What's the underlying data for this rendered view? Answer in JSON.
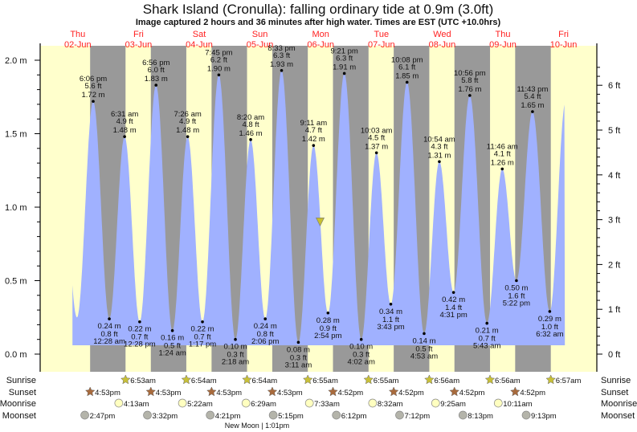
{
  "chart_data": {
    "type": "area",
    "title": "Shark Island (Cronulla): falling  ordinary tide at 0.9m (3.0ft)",
    "subtitle": "Image captured 2 hours and 36 minutes after high water. Times are EST (UTC +10.0hrs)",
    "y_left": {
      "unit": "m",
      "range": [
        0,
        2.0
      ],
      "ticks": [
        "0.0 m",
        "0.5 m",
        "1.0 m",
        "1.5 m",
        "2.0 m"
      ],
      "tick_values": [
        0,
        0.5,
        1.0,
        1.5,
        2.0
      ]
    },
    "y_right": {
      "unit": "ft",
      "ticks": [
        "0 ft",
        "1 ft",
        "2 ft",
        "3 ft",
        "4 ft",
        "5 ft",
        "6 ft"
      ],
      "tick_values": [
        0,
        1,
        2,
        3,
        4,
        5,
        6
      ]
    },
    "days": [
      {
        "dow": "Thu",
        "date": "02-Jun"
      },
      {
        "dow": "Fri",
        "date": "03-Jun"
      },
      {
        "dow": "Sat",
        "date": "04-Jun"
      },
      {
        "dow": "Sun",
        "date": "05-Jun"
      },
      {
        "dow": "Mon",
        "date": "06-Jun"
      },
      {
        "dow": "Tue",
        "date": "07-Jun"
      },
      {
        "dow": "Wed",
        "date": "08-Jun"
      },
      {
        "dow": "Thu",
        "date": "09-Jun"
      },
      {
        "dow": "Fri",
        "date": "10-Jun"
      }
    ],
    "current_level": {
      "m": 0.9,
      "ft": 3.0,
      "day": "06-Jun",
      "time": "11:47 am",
      "state": "falling"
    },
    "extremes": [
      {
        "type": "high",
        "day": "02-Jun",
        "time": "6:06 pm",
        "m": "1.72 m",
        "ft": "5.6 ft",
        "value": 1.72
      },
      {
        "type": "low",
        "day": "03-Jun",
        "time": "12:28 am",
        "m": "0.24 m",
        "ft": "0.8 ft",
        "value": 0.24
      },
      {
        "type": "high",
        "day": "03-Jun",
        "time": "6:31 am",
        "m": "1.48 m",
        "ft": "4.9 ft",
        "value": 1.48
      },
      {
        "type": "low",
        "day": "03-Jun",
        "time": "12:28 pm",
        "m": "0.22 m",
        "ft": "0.7 ft",
        "value": 0.22
      },
      {
        "type": "high",
        "day": "03-Jun",
        "time": "6:56 pm",
        "m": "1.83 m",
        "ft": "6.0 ft",
        "value": 1.83
      },
      {
        "type": "low",
        "day": "04-Jun",
        "time": "1:24 am",
        "m": "0.16 m",
        "ft": "0.5 ft",
        "value": 0.16
      },
      {
        "type": "high",
        "day": "04-Jun",
        "time": "7:26 am",
        "m": "1.48 m",
        "ft": "4.9 ft",
        "value": 1.48
      },
      {
        "type": "low",
        "day": "04-Jun",
        "time": "1:17 pm",
        "m": "0.22 m",
        "ft": "0.7 ft",
        "value": 0.22
      },
      {
        "type": "high",
        "day": "04-Jun",
        "time": "7:45 pm",
        "m": "1.90 m",
        "ft": "6.2 ft",
        "value": 1.9
      },
      {
        "type": "low",
        "day": "05-Jun",
        "time": "2:18 am",
        "m": "0.10 m",
        "ft": "0.3 ft",
        "value": 0.1
      },
      {
        "type": "high",
        "day": "05-Jun",
        "time": "8:20 am",
        "m": "1.46 m",
        "ft": "4.8 ft",
        "value": 1.46
      },
      {
        "type": "low",
        "day": "05-Jun",
        "time": "2:06 pm",
        "m": "0.24 m",
        "ft": "0.8 ft",
        "value": 0.24
      },
      {
        "type": "high",
        "day": "05-Jun",
        "time": "8:33 pm",
        "m": "1.93 m",
        "ft": "6.3 ft",
        "value": 1.93
      },
      {
        "type": "low",
        "day": "06-Jun",
        "time": "3:11 am",
        "m": "0.08 m",
        "ft": "0.3 ft",
        "value": 0.08
      },
      {
        "type": "high",
        "day": "06-Jun",
        "time": "9:11 am",
        "m": "1.42 m",
        "ft": "4.7 ft",
        "value": 1.42
      },
      {
        "type": "low",
        "day": "06-Jun",
        "time": "2:54 pm",
        "m": "0.28 m",
        "ft": "0.9 ft",
        "value": 0.28
      },
      {
        "type": "high",
        "day": "06-Jun",
        "time": "9:21 pm",
        "m": "1.91 m",
        "ft": "6.3 ft",
        "value": 1.91
      },
      {
        "type": "low",
        "day": "07-Jun",
        "time": "4:02 am",
        "m": "0.10 m",
        "ft": "0.3 ft",
        "value": 0.1
      },
      {
        "type": "high",
        "day": "07-Jun",
        "time": "10:03 am",
        "m": "1.37 m",
        "ft": "4.5 ft",
        "value": 1.37
      },
      {
        "type": "low",
        "day": "07-Jun",
        "time": "3:43 pm",
        "m": "0.34 m",
        "ft": "1.1 ft",
        "value": 0.34
      },
      {
        "type": "high",
        "day": "07-Jun",
        "time": "10:08 pm",
        "m": "1.85 m",
        "ft": "6.1 ft",
        "value": 1.85
      },
      {
        "type": "low",
        "day": "08-Jun",
        "time": "4:53 am",
        "m": "0.14 m",
        "ft": "0.5 ft",
        "value": 0.14
      },
      {
        "type": "high",
        "day": "08-Jun",
        "time": "10:54 am",
        "m": "1.31 m",
        "ft": "4.3 ft",
        "value": 1.31
      },
      {
        "type": "low",
        "day": "08-Jun",
        "time": "4:31 pm",
        "m": "0.42 m",
        "ft": "1.4 ft",
        "value": 0.42
      },
      {
        "type": "high",
        "day": "08-Jun",
        "time": "10:56 pm",
        "m": "1.76 m",
        "ft": "5.8 ft",
        "value": 1.76
      },
      {
        "type": "low",
        "day": "09-Jun",
        "time": "5:43 am",
        "m": "0.21 m",
        "ft": "0.7 ft",
        "value": 0.21
      },
      {
        "type": "high",
        "day": "09-Jun",
        "time": "11:46 am",
        "m": "1.26 m",
        "ft": "4.1 ft",
        "value": 1.26
      },
      {
        "type": "low",
        "day": "09-Jun",
        "time": "5:22 pm",
        "m": "0.50 m",
        "ft": "1.6 ft",
        "value": 0.5
      },
      {
        "type": "high",
        "day": "09-Jun",
        "time": "11:43 pm",
        "m": "1.65 m",
        "ft": "5.4 ft",
        "value": 1.65
      },
      {
        "type": "low",
        "day": "10-Jun",
        "time": "6:32 am",
        "m": "0.29 m",
        "ft": "1.0 ft",
        "value": 0.29
      }
    ],
    "rows": [
      {
        "label": "Sunrise",
        "icon": "sun-star-icon",
        "color": "#c8c038",
        "events": [
          {
            "day": "03-Jun",
            "time": "6:53am"
          },
          {
            "day": "04-Jun",
            "time": "6:54am"
          },
          {
            "day": "05-Jun",
            "time": "6:54am"
          },
          {
            "day": "06-Jun",
            "time": "6:55am"
          },
          {
            "day": "07-Jun",
            "time": "6:55am"
          },
          {
            "day": "08-Jun",
            "time": "6:56am"
          },
          {
            "day": "09-Jun",
            "time": "6:56am"
          },
          {
            "day": "10-Jun",
            "time": "6:57am"
          }
        ]
      },
      {
        "label": "Sunset",
        "icon": "sun-star-icon",
        "color": "#a86a3c",
        "events": [
          {
            "day": "02-Jun",
            "time": "4:53pm"
          },
          {
            "day": "03-Jun",
            "time": "4:53pm"
          },
          {
            "day": "04-Jun",
            "time": "4:53pm"
          },
          {
            "day": "05-Jun",
            "time": "4:53pm"
          },
          {
            "day": "06-Jun",
            "time": "4:52pm"
          },
          {
            "day": "07-Jun",
            "time": "4:52pm"
          },
          {
            "day": "08-Jun",
            "time": "4:52pm"
          },
          {
            "day": "09-Jun",
            "time": "4:52pm"
          }
        ]
      },
      {
        "label": "Moonrise",
        "icon": "moon-circle-icon",
        "color": "#ffffc0",
        "events": [
          {
            "day": "03-Jun",
            "time": "4:13am"
          },
          {
            "day": "04-Jun",
            "time": "5:22am"
          },
          {
            "day": "05-Jun",
            "time": "6:29am"
          },
          {
            "day": "06-Jun",
            "time": "7:33am"
          },
          {
            "day": "07-Jun",
            "time": "8:32am"
          },
          {
            "day": "08-Jun",
            "time": "9:25am"
          },
          {
            "day": "09-Jun",
            "time": "10:11am"
          }
        ]
      },
      {
        "label": "Moonset",
        "icon": "moon-circle-icon",
        "color": "#b4b4aa",
        "events": [
          {
            "day": "02-Jun",
            "time": "2:47pm"
          },
          {
            "day": "03-Jun",
            "time": "3:32pm"
          },
          {
            "day": "04-Jun",
            "time": "4:21pm"
          },
          {
            "day": "05-Jun",
            "time": "5:15pm"
          },
          {
            "day": "06-Jun",
            "time": "6:12pm"
          },
          {
            "day": "07-Jun",
            "time": "7:12pm"
          },
          {
            "day": "08-Jun",
            "time": "8:13pm"
          },
          {
            "day": "09-Jun",
            "time": "9:13pm"
          }
        ]
      }
    ],
    "moon_phase": {
      "label": "New Moon | 1:01pm",
      "day": "05-Jun",
      "time": "1:01pm"
    },
    "colors": {
      "day": "#ffffcc",
      "night": "#999999",
      "water": "#a0b1ff",
      "date_text": "#ff2020",
      "marker": "#c8c030"
    }
  }
}
